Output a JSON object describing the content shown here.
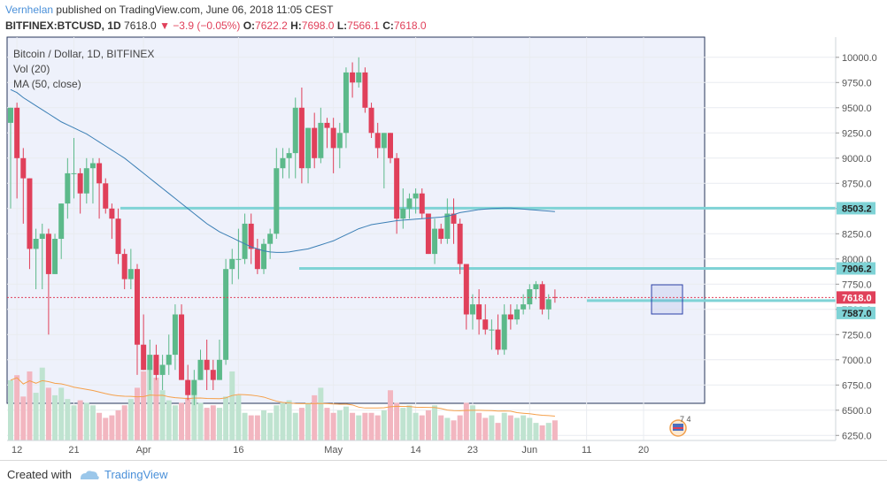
{
  "header": {
    "author": "Vernhelan",
    "published_text": "published on TradingView.com, June 06, 2018 11:05 CEST",
    "symbol": "BITFINEX:BTCUSD, 1D",
    "last": "7618.0",
    "change": "−3.9 (−0.05%)",
    "open_label": "O:",
    "open": "7622.2",
    "high_label": "H:",
    "high": "7698.0",
    "low_label": "L:",
    "low": "7566.1",
    "close_label": "C:",
    "close": "7618.0"
  },
  "legend": {
    "title": "Bitcoin / Dollar, 1D, BITFINEX",
    "vol": "Vol (20)",
    "ma": "MA (50, close)"
  },
  "footer": {
    "created_with": "Created with",
    "brand": "TradingView"
  },
  "colors": {
    "up": "#5cb98a",
    "down": "#e0405a",
    "vol_up": "#bfe3d0",
    "vol_down": "#f2b6c0",
    "ma": "#3b7fb5",
    "vol_ma": "#f5a04a",
    "hline": "#7fd3d6",
    "price_tag": "#e0405a"
  },
  "chart_data": {
    "type": "candlestick",
    "title": "Bitcoin / Dollar, 1D, BITFINEX",
    "y_range": [
      6200,
      10200
    ],
    "y_ticks": [
      6250,
      6500,
      6750,
      7000,
      7250,
      7500,
      7750,
      8000,
      8250,
      8500,
      8750,
      9000,
      9250,
      9500,
      9750,
      10000
    ],
    "x_tick_labels": [
      {
        "i": 1,
        "label": "12"
      },
      {
        "i": 10,
        "label": "21"
      },
      {
        "i": 21,
        "label": "Apr"
      },
      {
        "i": 36,
        "label": "16"
      },
      {
        "i": 51,
        "label": "May"
      },
      {
        "i": 64,
        "label": "14"
      },
      {
        "i": 73,
        "label": "23"
      },
      {
        "i": 82,
        "label": "Jun"
      },
      {
        "i": 91,
        "label": "11"
      },
      {
        "i": 100,
        "label": "20"
      }
    ],
    "horizontal_lines": [
      8503.2,
      7906.2,
      7587.0
    ],
    "price_labels": [
      {
        "value": 8503.2,
        "text": "8503.2",
        "kind": "level"
      },
      {
        "value": 7906.2,
        "text": "7906.2",
        "kind": "level"
      },
      {
        "value": 7618.0,
        "text": "7618.0",
        "kind": "last"
      },
      {
        "value": 7587.0,
        "text": "7587.0",
        "kind": "level"
      }
    ],
    "candles": [
      [
        9350,
        9500,
        8500,
        9500
      ],
      [
        9500,
        9550,
        8600,
        9000
      ],
      [
        9000,
        9100,
        8350,
        8800
      ],
      [
        8800,
        8800,
        7900,
        8100
      ],
      [
        8100,
        8300,
        7700,
        8200
      ],
      [
        8200,
        8350,
        7700,
        8250
      ],
      [
        8250,
        8300,
        7250,
        7850
      ],
      [
        7850,
        8250,
        7850,
        8200
      ],
      [
        8200,
        8550,
        8000,
        8550
      ],
      [
        8550,
        9000,
        8400,
        8850
      ],
      [
        8850,
        9200,
        8600,
        8850
      ],
      [
        8850,
        8900,
        8450,
        8650
      ],
      [
        8650,
        9000,
        8550,
        8900
      ],
      [
        8900,
        9000,
        8550,
        8950
      ],
      [
        8950,
        9000,
        8400,
        8750
      ],
      [
        8750,
        8800,
        8450,
        8500
      ],
      [
        8500,
        8550,
        8200,
        8400
      ],
      [
        8400,
        8500,
        7950,
        8050
      ],
      [
        8050,
        8100,
        7700,
        7800
      ],
      [
        7800,
        8100,
        7700,
        7900
      ],
      [
        7900,
        7950,
        6850,
        7150
      ],
      [
        7150,
        7450,
        6900,
        6900
      ],
      [
        6900,
        7200,
        6700,
        7050
      ],
      [
        7050,
        7150,
        6800,
        6850
      ],
      [
        6850,
        7050,
        6700,
        6950
      ],
      [
        6950,
        7250,
        6850,
        7050
      ],
      [
        7050,
        7550,
        6900,
        7450
      ],
      [
        7450,
        7550,
        6800,
        6800
      ],
      [
        6800,
        6950,
        6600,
        6650
      ],
      [
        6650,
        6900,
        6550,
        6800
      ],
      [
        6800,
        7100,
        6800,
        7000
      ],
      [
        7000,
        7200,
        6700,
        6900
      ],
      [
        6900,
        7000,
        6700,
        6800
      ],
      [
        6800,
        7200,
        6800,
        7000
      ],
      [
        7000,
        8000,
        6950,
        7900
      ],
      [
        7900,
        8100,
        7750,
        8000
      ],
      [
        8000,
        8300,
        7800,
        8000
      ],
      [
        8000,
        8450,
        7950,
        8350
      ],
      [
        8350,
        8450,
        7950,
        8100
      ],
      [
        8100,
        8200,
        7850,
        7900
      ],
      [
        7900,
        8200,
        7850,
        8150
      ],
      [
        8150,
        8300,
        8000,
        8250
      ],
      [
        8250,
        9100,
        8200,
        8900
      ],
      [
        8900,
        9100,
        8800,
        9000
      ],
      [
        9000,
        9100,
        8800,
        9050
      ],
      [
        9050,
        9600,
        8800,
        9500
      ],
      [
        9500,
        9700,
        8750,
        8900
      ],
      [
        8900,
        9300,
        8750,
        9300
      ],
      [
        9300,
        9450,
        8900,
        9000
      ],
      [
        9000,
        9500,
        8950,
        9350
      ],
      [
        9350,
        9400,
        9100,
        9300
      ],
      [
        9300,
        9400,
        8850,
        9100
      ],
      [
        9100,
        9350,
        8900,
        9250
      ],
      [
        9250,
        9900,
        9100,
        9850
      ],
      [
        9850,
        9950,
        9600,
        9750
      ],
      [
        9750,
        10000,
        9700,
        9850
      ],
      [
        9850,
        9900,
        9450,
        9500
      ],
      [
        9500,
        9550,
        9200,
        9250
      ],
      [
        9250,
        9350,
        9000,
        9100
      ],
      [
        9100,
        9250,
        8700,
        9250
      ],
      [
        9250,
        9250,
        8950,
        9000
      ],
      [
        9000,
        9050,
        8250,
        8400
      ],
      [
        8400,
        8700,
        8300,
        8500
      ],
      [
        8500,
        8650,
        8400,
        8600
      ],
      [
        8600,
        8700,
        8450,
        8650
      ],
      [
        8650,
        8700,
        8400,
        8450
      ],
      [
        8450,
        8450,
        8050,
        8050
      ],
      [
        8050,
        8400,
        7950,
        8300
      ],
      [
        8300,
        8350,
        8150,
        8200
      ],
      [
        8200,
        8600,
        8150,
        8450
      ],
      [
        8450,
        8600,
        8150,
        8350
      ],
      [
        8350,
        8400,
        7850,
        7950
      ],
      [
        7950,
        7950,
        7300,
        7450
      ],
      [
        7450,
        7650,
        7300,
        7550
      ],
      [
        7550,
        7700,
        7250,
        7400
      ],
      [
        7400,
        7550,
        7250,
        7300
      ],
      [
        7300,
        7400,
        7100,
        7300
      ],
      [
        7300,
        7450,
        7050,
        7100
      ],
      [
        7100,
        7550,
        7050,
        7450
      ],
      [
        7450,
        7550,
        7300,
        7400
      ],
      [
        7400,
        7550,
        7350,
        7500
      ],
      [
        7500,
        7650,
        7450,
        7550
      ],
      [
        7550,
        7750,
        7500,
        7700
      ],
      [
        7700,
        7780,
        7600,
        7750
      ],
      [
        7750,
        7780,
        7450,
        7500
      ],
      [
        7500,
        7650,
        7400,
        7600
      ],
      [
        7622.2,
        7698,
        7566.1,
        7618
      ]
    ],
    "volume": [
      48,
      52,
      35,
      55,
      38,
      58,
      42,
      36,
      42,
      33,
      28,
      32,
      30,
      28,
      22,
      18,
      20,
      24,
      28,
      33,
      42,
      55,
      60,
      50,
      40,
      32,
      28,
      30,
      34,
      40,
      30,
      26,
      28,
      26,
      35,
      55,
      36,
      22,
      20,
      20,
      24,
      22,
      28,
      30,
      32,
      22,
      26,
      30,
      36,
      42,
      26,
      22,
      24,
      27,
      22,
      20,
      22,
      22,
      20,
      24,
      40,
      30,
      26,
      28,
      22,
      20,
      24,
      28,
      20,
      18,
      16,
      20,
      30,
      28,
      22,
      18,
      20,
      14,
      22,
      20,
      18,
      20,
      18,
      14,
      12,
      14,
      16
    ],
    "ma50": [
      9680,
      9650,
      9600,
      9560,
      9520,
      9480,
      9440,
      9400,
      9360,
      9330,
      9300,
      9270,
      9240,
      9200,
      9160,
      9120,
      9080,
      9040,
      9000,
      8950,
      8900,
      8850,
      8800,
      8750,
      8700,
      8650,
      8600,
      8550,
      8500,
      8450,
      8400,
      8350,
      8310,
      8270,
      8240,
      8210,
      8180,
      8150,
      8120,
      8100,
      8080,
      8070,
      8065,
      8065,
      8070,
      8080,
      8090,
      8100,
      8120,
      8140,
      8160,
      8180,
      8210,
      8240,
      8270,
      8300,
      8320,
      8340,
      8350,
      8360,
      8370,
      8380,
      8385,
      8390,
      8395,
      8400,
      8405,
      8410,
      8415,
      8425,
      8440,
      8460,
      8470,
      8480,
      8490,
      8495,
      8500,
      8503,
      8505,
      8505,
      8500,
      8495,
      8490,
      8485,
      8480,
      8475,
      8470
    ]
  }
}
